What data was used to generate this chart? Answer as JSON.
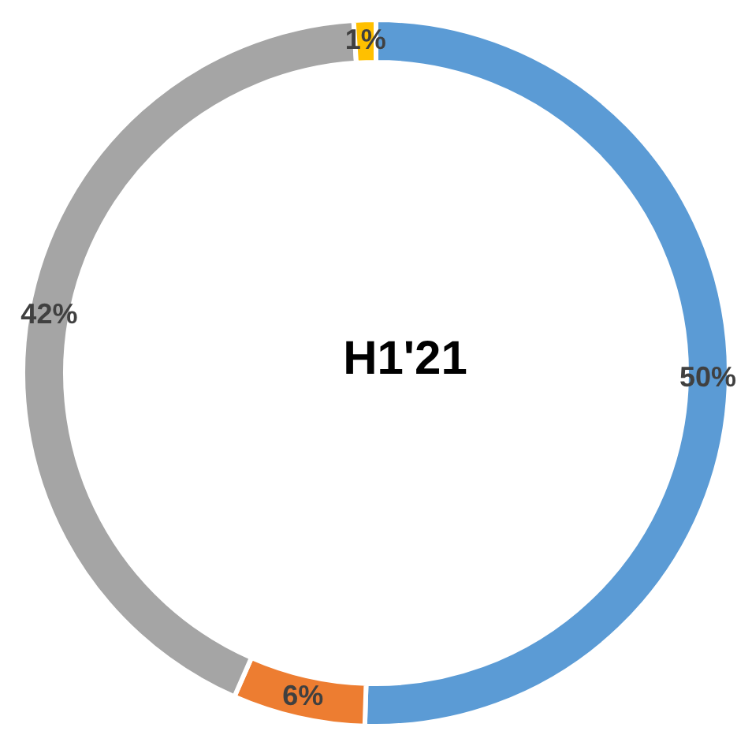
{
  "chart_data": {
    "type": "donut",
    "title": "H1'21",
    "categories": [
      null,
      null,
      null,
      null
    ],
    "values": [
      50,
      6,
      42,
      1
    ],
    "colors": [
      "#5b9bd5",
      "#ed7d31",
      "#a5a5a5",
      "#ffc000"
    ],
    "value_labels": [
      "50%",
      "6%",
      "42%",
      "1%"
    ]
  }
}
